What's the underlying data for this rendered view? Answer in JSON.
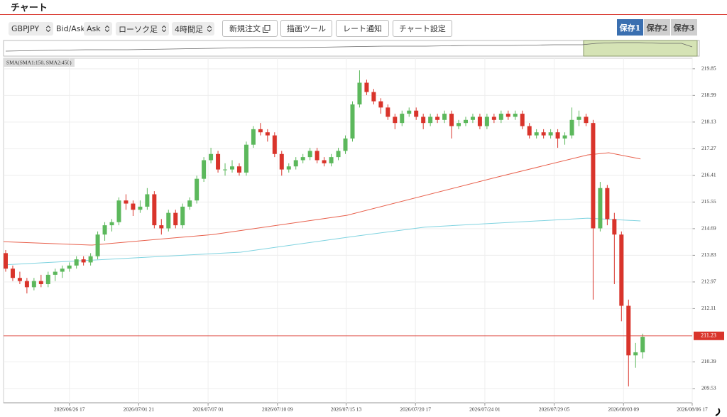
{
  "header": {
    "title": "チャート"
  },
  "toolbar": {
    "symbol": "GBPJPY",
    "price_label": "Bid/Ask",
    "price_side": "Ask",
    "chart_kind": "ローソク足",
    "timeframe": "4時間足",
    "buttons": [
      "新規注文",
      "描画ツール",
      "レート通知",
      "チャート設定"
    ],
    "saves": [
      "保存1",
      "保存2",
      "保存3"
    ]
  },
  "chart_data": {
    "type": "candlestick",
    "indicator_label": "SMA(SMA1:150, SMA2:450)",
    "up_color": "#5cb85c",
    "down_color": "#d9342b",
    "candles": [
      [
        213.9,
        214.0,
        213.3,
        213.4
      ],
      [
        213.4,
        213.5,
        213.0,
        213.1
      ],
      [
        213.1,
        213.3,
        212.9,
        213.0
      ],
      [
        213.0,
        213.1,
        212.6,
        212.8
      ],
      [
        212.8,
        213.1,
        212.7,
        213.0
      ],
      [
        213.0,
        213.2,
        212.8,
        212.9
      ],
      [
        212.9,
        213.3,
        212.8,
        213.2
      ],
      [
        213.2,
        213.4,
        213.0,
        213.3
      ],
      [
        213.3,
        213.5,
        213.1,
        213.4
      ],
      [
        213.4,
        213.6,
        213.3,
        213.5
      ],
      [
        213.5,
        213.8,
        213.4,
        213.7
      ],
      [
        213.7,
        213.8,
        213.5,
        213.6
      ],
      [
        213.6,
        213.9,
        213.5,
        213.8
      ],
      [
        213.8,
        214.6,
        213.7,
        214.5
      ],
      [
        214.5,
        214.9,
        214.3,
        214.8
      ],
      [
        214.8,
        215.0,
        214.6,
        214.9
      ],
      [
        214.9,
        215.7,
        214.8,
        215.6
      ],
      [
        215.6,
        215.8,
        215.3,
        215.5
      ],
      [
        215.5,
        215.6,
        215.1,
        215.3
      ],
      [
        215.3,
        215.6,
        215.2,
        215.4
      ],
      [
        215.4,
        216.0,
        215.3,
        215.8
      ],
      [
        215.8,
        215.9,
        214.7,
        214.8
      ],
      [
        214.8,
        215.0,
        214.5,
        214.7
      ],
      [
        214.7,
        215.3,
        214.6,
        215.2
      ],
      [
        215.2,
        215.3,
        214.7,
        214.8
      ],
      [
        214.8,
        215.5,
        214.7,
        215.4
      ],
      [
        215.4,
        215.7,
        215.3,
        215.6
      ],
      [
        215.6,
        216.4,
        215.5,
        216.3
      ],
      [
        216.3,
        217.0,
        216.2,
        216.9
      ],
      [
        216.9,
        217.3,
        216.8,
        217.1
      ],
      [
        217.1,
        217.2,
        216.5,
        216.6
      ],
      [
        216.6,
        216.8,
        216.4,
        216.6
      ],
      [
        216.6,
        216.9,
        216.5,
        216.7
      ],
      [
        216.7,
        216.8,
        216.4,
        216.5
      ],
      [
        216.5,
        217.5,
        216.4,
        217.4
      ],
      [
        217.4,
        218.0,
        217.3,
        217.9
      ],
      [
        217.9,
        218.1,
        217.7,
        217.8
      ],
      [
        217.8,
        217.9,
        217.5,
        217.7
      ],
      [
        217.7,
        217.8,
        217.0,
        217.1
      ],
      [
        217.1,
        217.2,
        216.4,
        216.6
      ],
      [
        216.6,
        216.8,
        216.5,
        216.7
      ],
      [
        216.7,
        217.0,
        216.6,
        216.9
      ],
      [
        216.9,
        217.1,
        216.8,
        217.0
      ],
      [
        217.0,
        217.3,
        216.9,
        217.2
      ],
      [
        217.2,
        217.3,
        216.8,
        216.9
      ],
      [
        216.9,
        217.0,
        216.7,
        216.8
      ],
      [
        216.8,
        217.1,
        216.7,
        217.0
      ],
      [
        217.0,
        217.3,
        216.9,
        217.2
      ],
      [
        217.2,
        217.7,
        217.1,
        217.6
      ],
      [
        217.6,
        218.8,
        217.5,
        218.7
      ],
      [
        218.7,
        219.8,
        218.6,
        219.4
      ],
      [
        219.4,
        219.5,
        219.0,
        219.1
      ],
      [
        219.1,
        219.2,
        218.7,
        218.8
      ],
      [
        218.8,
        218.9,
        218.4,
        218.6
      ],
      [
        218.6,
        218.7,
        218.2,
        218.3
      ],
      [
        218.3,
        218.4,
        217.9,
        218.1
      ],
      [
        218.1,
        218.5,
        218.0,
        218.4
      ],
      [
        218.4,
        218.6,
        218.3,
        218.5
      ],
      [
        218.5,
        218.6,
        218.2,
        218.3
      ],
      [
        218.3,
        218.4,
        217.9,
        218.1
      ],
      [
        218.1,
        218.4,
        218.0,
        218.3
      ],
      [
        218.3,
        218.4,
        218.1,
        218.2
      ],
      [
        218.2,
        218.5,
        218.1,
        218.4
      ],
      [
        218.4,
        218.5,
        217.6,
        218.0
      ],
      [
        218.0,
        218.2,
        217.9,
        218.1
      ],
      [
        218.1,
        218.3,
        218.0,
        218.2
      ],
      [
        218.2,
        218.4,
        218.1,
        218.3
      ],
      [
        218.3,
        218.4,
        217.9,
        218.0
      ],
      [
        218.0,
        218.4,
        217.9,
        218.3
      ],
      [
        218.3,
        218.4,
        218.1,
        218.2
      ],
      [
        218.2,
        218.5,
        218.1,
        218.4
      ],
      [
        218.4,
        218.5,
        218.2,
        218.3
      ],
      [
        218.3,
        218.5,
        218.2,
        218.4
      ],
      [
        218.4,
        218.5,
        217.9,
        218.0
      ],
      [
        218.0,
        218.1,
        217.6,
        217.7
      ],
      [
        217.7,
        217.9,
        217.6,
        217.8
      ],
      [
        217.8,
        217.9,
        217.6,
        217.7
      ],
      [
        217.7,
        217.9,
        217.6,
        217.8
      ],
      [
        217.8,
        217.9,
        217.3,
        217.6
      ],
      [
        217.6,
        217.8,
        217.4,
        217.7
      ],
      [
        217.7,
        218.6,
        217.6,
        218.2
      ],
      [
        218.2,
        218.5,
        218.0,
        218.3
      ],
      [
        218.3,
        218.4,
        218.0,
        218.1
      ],
      [
        218.1,
        218.2,
        212.4,
        214.7
      ],
      [
        214.7,
        216.2,
        214.6,
        216.0
      ],
      [
        216.0,
        216.1,
        214.8,
        215.0
      ],
      [
        215.0,
        215.2,
        212.9,
        214.5
      ],
      [
        214.5,
        214.6,
        211.7,
        212.2
      ],
      [
        212.2,
        212.4,
        209.6,
        210.6
      ],
      [
        210.6,
        211.0,
        210.2,
        210.7
      ],
      [
        210.7,
        211.3,
        210.5,
        211.2
      ]
    ],
    "series": [
      {
        "color": "#e8604c",
        "x": [
          -0.3,
          12.2,
          29.2,
          48.2,
          69.2,
          82.2,
          85.2,
          89.7
        ],
        "values": [
          214.27,
          214.16,
          214.5,
          215.12,
          216.34,
          217.07,
          217.14,
          216.94
        ]
      },
      {
        "color": "#7fd3e0",
        "x": [
          -0.3,
          33.2,
          49.2,
          59.2,
          82.2,
          89.7
        ],
        "values": [
          213.52,
          213.93,
          214.44,
          214.74,
          215.03,
          214.94
        ]
      }
    ],
    "current_price": 211.23,
    "current_color": "#d9342b",
    "xlim": [
      -0.3,
      97
    ],
    "xticks": [
      {
        "value": 9,
        "label": "2026/06/26 17"
      },
      {
        "value": 18.8,
        "label": "2026/07/01 21"
      },
      {
        "value": 28.6,
        "label": "2026/07/07 01"
      },
      {
        "value": 38.4,
        "label": "2026/07/10 09"
      },
      {
        "value": 48.1,
        "label": "2026/07/15 13"
      },
      {
        "value": 57.9,
        "label": "2026/07/20 17"
      },
      {
        "value": 67.7,
        "label": "2026/07/24 01"
      },
      {
        "value": 77.5,
        "label": "2026/07/29 05"
      },
      {
        "value": 87.3,
        "label": "2026/08/03 09"
      },
      {
        "value": 97,
        "label": "2026/08/06 17"
      }
    ],
    "ylim": [
      209.07,
      220.19
    ],
    "yticks": [
      219.85,
      218.99,
      218.13,
      217.27,
      216.41,
      215.55,
      214.69,
      213.83,
      212.97,
      212.11,
      210.39,
      209.53
    ],
    "grid": true
  }
}
